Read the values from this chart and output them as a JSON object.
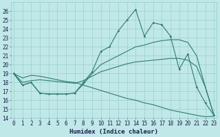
{
  "xlabel": "Humidex (Indice chaleur)",
  "x": [
    0,
    1,
    2,
    3,
    4,
    5,
    6,
    7,
    8,
    9,
    10,
    11,
    12,
    13,
    14,
    15,
    16,
    17,
    18,
    19,
    20,
    21,
    22,
    23
  ],
  "line1": [
    19,
    17.7,
    18.0,
    16.8,
    16.7,
    16.7,
    16.7,
    16.8,
    18.0,
    19.2,
    21.5,
    22.0,
    23.8,
    25.0,
    26.2,
    23.2,
    24.7,
    24.5,
    23.2,
    19.5,
    21.2,
    17.5,
    15.7,
    14.3
  ],
  "line2": [
    19,
    17.7,
    18.0,
    16.8,
    16.7,
    16.7,
    16.7,
    16.8,
    17.8,
    19.0,
    20.0,
    20.5,
    21.0,
    21.5,
    22.0,
    22.2,
    22.5,
    22.7,
    22.8,
    22.8,
    22.5,
    21.0,
    17.5,
    14.3
  ],
  "line3": [
    19,
    18.0,
    18.2,
    18.3,
    18.2,
    18.1,
    18.0,
    17.9,
    18.2,
    18.7,
    19.2,
    19.5,
    19.8,
    20.1,
    20.3,
    20.4,
    20.5,
    20.6,
    20.7,
    20.7,
    20.5,
    19.8,
    17.5,
    14.3
  ],
  "line4": [
    19,
    18.5,
    18.8,
    18.7,
    18.5,
    18.3,
    18.1,
    18.0,
    17.7,
    17.4,
    17.1,
    16.8,
    16.5,
    16.2,
    16.0,
    15.7,
    15.5,
    15.2,
    14.9,
    14.7,
    14.5,
    14.3,
    14.15,
    14.2
  ],
  "line_color": "#2e7b6e",
  "bg_color": "#c0e8e8",
  "grid_color": "#90c8c8",
  "ylim": [
    14,
    27
  ],
  "yticks": [
    14,
    15,
    16,
    17,
    18,
    19,
    20,
    21,
    22,
    23,
    24,
    25,
    26
  ],
  "xticks": [
    0,
    1,
    2,
    3,
    4,
    5,
    6,
    7,
    8,
    9,
    10,
    11,
    12,
    13,
    14,
    15,
    16,
    17,
    18,
    19,
    20,
    21,
    22,
    23
  ],
  "tick_fontsize": 5.5,
  "xlabel_fontsize": 6.5
}
